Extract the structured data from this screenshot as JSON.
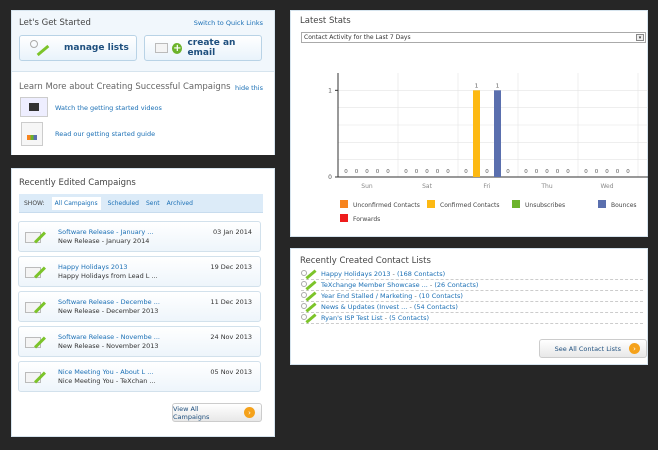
{
  "get_started": {
    "title": "Let's Get Started",
    "switch_link": "Switch to Quick Links",
    "manage_lists": "manage lists",
    "create_email": "create an email",
    "learn_title": "Learn More about Creating Successful Campaigns",
    "hide_link": "hide this",
    "videos_link": "Watch the getting started videos",
    "guide_link": "Read our getting started guide"
  },
  "campaigns": {
    "title": "Recently Edited Campaigns",
    "show_label": "SHOW:",
    "tabs": [
      "All Campaigns",
      "Scheduled",
      "Sent",
      "Archived"
    ],
    "active_tab": "All Campaigns",
    "items": [
      {
        "title": "Software Release - January ...",
        "subject": "New Release - January 2014",
        "date": "03 Jan 2014"
      },
      {
        "title": "Happy Holidays 2013",
        "subject": "Happy Holidays from Lead L ...",
        "date": "19 Dec 2013"
      },
      {
        "title": "Software Release - Decembe ...",
        "subject": "New Release - December 2013",
        "date": "11 Dec 2013"
      },
      {
        "title": "Software Release - Novembe ...",
        "subject": "New Release - November 2013",
        "date": "24 Nov 2013"
      },
      {
        "title": "Nice Meeting You - About L ...",
        "subject": "Nice Meeting You - TeXchan ...",
        "date": "05 Nov 2013"
      }
    ],
    "view_all": "View All Campaigns"
  },
  "stats": {
    "title": "Latest Stats",
    "select_value": "Contact Activity for the Last 7 Days"
  },
  "chart_data": {
    "type": "bar",
    "categories": [
      "Sun",
      "Sat",
      "Fri",
      "Thu",
      "Wed"
    ],
    "ylim": [
      0,
      1.2
    ],
    "yticks": [
      0,
      1
    ],
    "grid": true,
    "legend": "bottom",
    "series": [
      {
        "name": "Unconfirmed Contacts",
        "color": "#f7841e",
        "values": [
          0,
          0,
          0,
          0,
          0
        ]
      },
      {
        "name": "Confirmed Contacts",
        "color": "#fdb913",
        "values": [
          0,
          0,
          1,
          0,
          0
        ]
      },
      {
        "name": "Unsubscribes",
        "color": "#6cb32b",
        "values": [
          0,
          0,
          0,
          0,
          0
        ]
      },
      {
        "name": "Bounces",
        "color": "#5a6fae",
        "values": [
          0,
          0,
          1,
          0,
          0
        ]
      },
      {
        "name": "Forwards",
        "color": "#ee1c1c",
        "values": [
          0,
          0,
          0,
          0,
          0
        ]
      }
    ]
  },
  "contact_lists": {
    "title": "Recently Created Contact Lists",
    "items": [
      {
        "name": "Happy Holidays 2013",
        "count": "(168 Contacts)"
      },
      {
        "name": "TeXchange Member Showcase ...",
        "count": "(26 Contacts)"
      },
      {
        "name": "Year End Stalled / Marketing",
        "count": "(10 Contacts)"
      },
      {
        "name": "News & Updates (Invest ...",
        "count": "(54 Contacts)"
      },
      {
        "name": "Ryan's ISP Test List",
        "count": "(5 Contacts)"
      }
    ],
    "see_all": "See All Contact Lists"
  }
}
